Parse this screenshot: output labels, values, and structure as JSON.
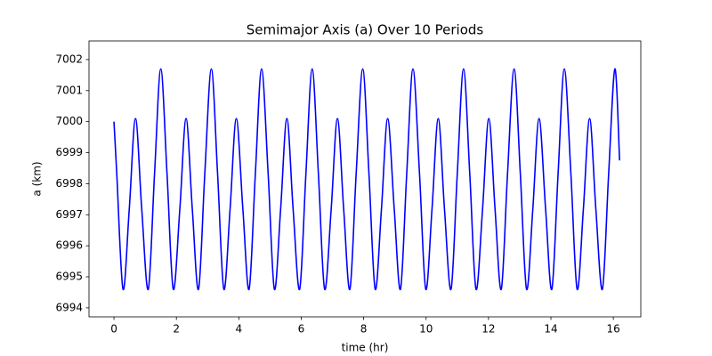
{
  "chart_data": {
    "type": "line",
    "title": "Semimajor Axis (a) Over 10 Periods",
    "x_label": "time (hr)",
    "y_label": "a (km)",
    "color": "#0000ff",
    "x": [
      0,
      0.09,
      0.29,
      0.49,
      0.69,
      0.89,
      1.1,
      1.3,
      1.5,
      1.7,
      1.9,
      2.11,
      2.31,
      2.51,
      2.71,
      2.91,
      3.12,
      3.32,
      3.52,
      3.72,
      3.92,
      4.13,
      4.33,
      4.53,
      4.73,
      4.94,
      5.14,
      5.34,
      5.54,
      5.74,
      5.95,
      6.15,
      6.35,
      6.55,
      6.75,
      6.96,
      7.16,
      7.36,
      7.56,
      7.76,
      7.97,
      8.17,
      8.37,
      8.57,
      8.77,
      8.98,
      9.18,
      9.38,
      9.58,
      9.79,
      9.99,
      10.19,
      10.39,
      10.59,
      10.8,
      11.0,
      11.2,
      11.4,
      11.6,
      11.81,
      12.01,
      12.21,
      12.41,
      12.61,
      12.82,
      13.02,
      13.22,
      13.42,
      13.62,
      13.83,
      14.03,
      14.23,
      14.43,
      14.64,
      14.84,
      15.04,
      15.24,
      15.44,
      15.65,
      15.85,
      16.05,
      16.2
    ],
    "values": [
      7000.0,
      6998.32,
      6994.6,
      6997.18,
      7000.1,
      6997.18,
      6994.6,
      6998.32,
      7001.7,
      6998.32,
      6994.6,
      6997.18,
      7000.1,
      6997.18,
      6994.6,
      6998.32,
      7001.7,
      6998.32,
      6994.6,
      6997.18,
      7000.1,
      6997.18,
      6994.6,
      6998.32,
      7001.7,
      6998.32,
      6994.6,
      6997.18,
      7000.1,
      6997.18,
      6994.6,
      6998.32,
      7001.7,
      6998.32,
      6994.6,
      6997.18,
      7000.1,
      6997.18,
      6994.6,
      6998.32,
      7001.7,
      6998.32,
      6994.6,
      6997.18,
      7000.1,
      6997.18,
      6994.6,
      6998.32,
      7001.7,
      6998.32,
      6994.6,
      6997.18,
      7000.1,
      6997.18,
      6994.6,
      6998.32,
      7001.7,
      6998.32,
      6994.6,
      6997.18,
      7000.1,
      6997.18,
      6994.6,
      6998.32,
      7001.7,
      6998.32,
      6994.6,
      6997.18,
      7000.1,
      6997.18,
      6994.6,
      6998.32,
      7001.7,
      6998.32,
      6994.6,
      6997.18,
      7000.1,
      6997.18,
      6994.6,
      6998.32,
      7001.7,
      6998.75
    ],
    "xlim": [
      -0.8,
      16.88
    ],
    "ylim": [
      6993.71,
      7002.6
    ],
    "xticks": [
      0,
      2,
      4,
      6,
      8,
      10,
      12,
      14,
      16
    ],
    "yticks": [
      6994,
      6995,
      6996,
      6997,
      6998,
      6999,
      7000,
      7001,
      7002
    ]
  }
}
